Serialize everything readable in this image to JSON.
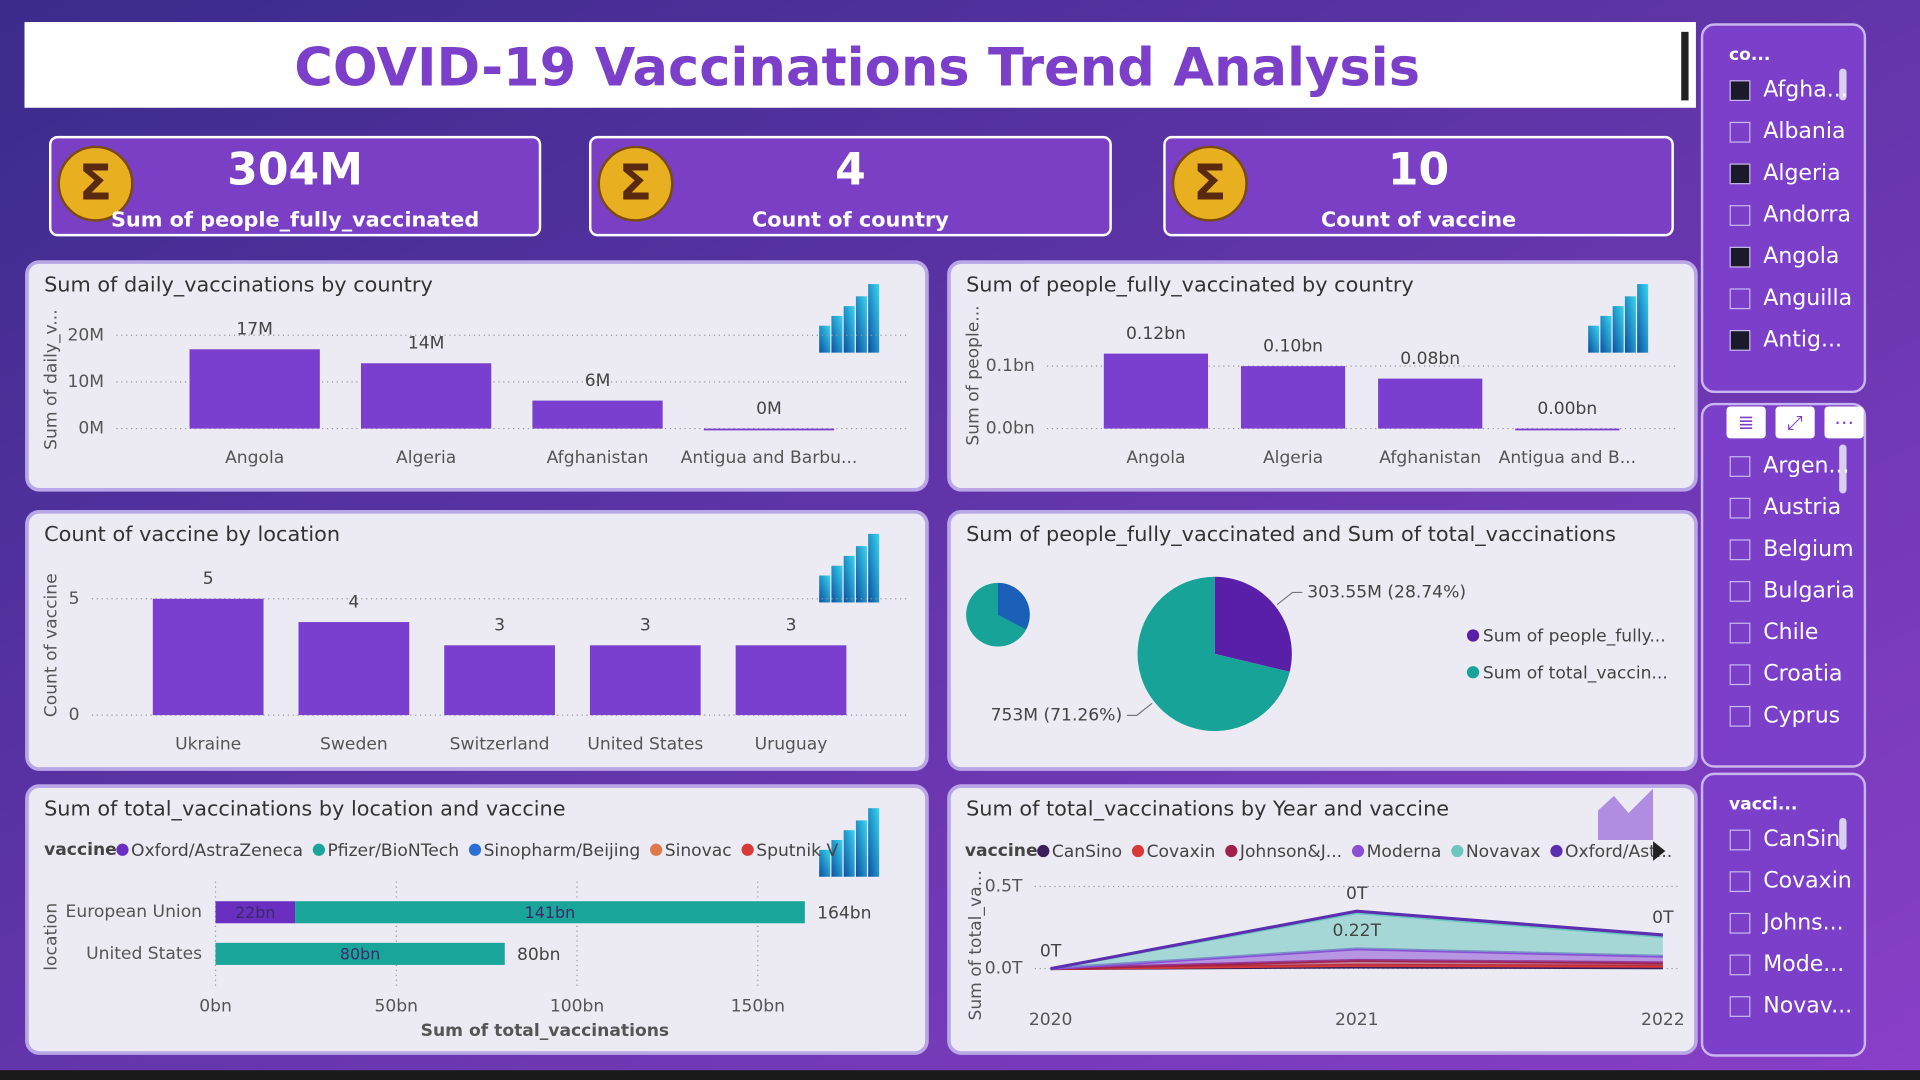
{
  "title": "COVID-19 Vaccinations Trend Analysis",
  "kpis": [
    {
      "value": "304M",
      "label": "Sum of people_fully_vaccinated"
    },
    {
      "value": "4",
      "label": "Count of country"
    },
    {
      "value": "10",
      "label": "Count of vaccine"
    }
  ],
  "slicers": [
    {
      "title": "co...",
      "items": [
        {
          "label": "Afgha...",
          "checked": true
        },
        {
          "label": "Albania",
          "checked": false
        },
        {
          "label": "Algeria",
          "checked": true
        },
        {
          "label": "Andorra",
          "checked": false
        },
        {
          "label": "Angola",
          "checked": true
        },
        {
          "label": "Anguilla",
          "checked": false
        },
        {
          "label": "Antig...",
          "checked": true
        }
      ]
    },
    {
      "items": [
        {
          "label": "Argen...",
          "checked": false
        },
        {
          "label": "Austria",
          "checked": false
        },
        {
          "label": "Belgium",
          "checked": false
        },
        {
          "label": "Bulgaria",
          "checked": false
        },
        {
          "label": "Chile",
          "checked": false
        },
        {
          "label": "Croatia",
          "checked": false
        },
        {
          "label": "Cyprus",
          "checked": false
        }
      ]
    },
    {
      "title": "vacci...",
      "items": [
        {
          "label": "CanSin",
          "checked": false
        },
        {
          "label": "Covaxin",
          "checked": false
        },
        {
          "label": "Johns...",
          "checked": false
        },
        {
          "label": "Mode...",
          "checked": false
        },
        {
          "label": "Novav...",
          "checked": false
        }
      ]
    }
  ],
  "chart_data": [
    {
      "type": "bar",
      "title": "Sum of daily_vaccinations by country",
      "y_label": "Sum of daily_v...",
      "categories": [
        "Angola",
        "Algeria",
        "Afghanistan",
        "Antigua and Barbu..."
      ],
      "values": [
        17,
        14,
        6,
        0
      ],
      "value_labels": [
        "17M",
        "14M",
        "6M",
        "0M"
      ],
      "color": "#7b3fd0",
      "ylim": [
        0,
        21
      ],
      "yticks": [
        {
          "value": 0,
          "label": "0M"
        },
        {
          "value": 10,
          "label": "10M"
        },
        {
          "value": 20,
          "label": "20M"
        }
      ],
      "grid": true
    },
    {
      "type": "bar",
      "title": "Sum of people_fully_vaccinated by country",
      "y_label": "Sum of people...",
      "categories": [
        "Angola",
        "Algeria",
        "Afghanistan",
        "Antigua and B..."
      ],
      "values": [
        0.12,
        0.1,
        0.08,
        0.0
      ],
      "value_labels": [
        "0.12bn",
        "0.10bn",
        "0.08bn",
        "0.00bn"
      ],
      "color": "#7b3fd0",
      "ylim": [
        0,
        0.17
      ],
      "yticks": [
        {
          "value": 0,
          "label": "0.0bn"
        },
        {
          "value": 0.1,
          "label": "0.1bn"
        }
      ],
      "grid": true
    },
    {
      "type": "bar",
      "title": "Count of vaccine by location",
      "y_label": "Count of vaccine",
      "categories": [
        "Ukraine",
        "Sweden",
        "Switzerland",
        "United States",
        "Uruguay"
      ],
      "values": [
        5,
        4,
        3,
        3,
        3
      ],
      "color": "#7b3fd0",
      "ylim": [
        0,
        6
      ],
      "yticks": [
        0,
        5
      ],
      "grid": true
    },
    {
      "type": "pie",
      "title": "Sum of people_fully_vaccinated and Sum of total_vaccinations",
      "categories": [
        "Sum of people_fully...",
        "Sum of total_vaccin..."
      ],
      "values": [
        303.55,
        753
      ],
      "value_labels": [
        "303.55M (28.74%)",
        "753M (71.26%)"
      ],
      "colors": [
        "#5a1fa8",
        "#17a398"
      ],
      "legend": "right"
    },
    {
      "type": "hbar_stacked",
      "title": "Sum of total_vaccinations by location and vaccine",
      "legend_title": "vaccine",
      "x_label": "Sum of total_vaccinations",
      "y_label": "location",
      "categories": [
        "European Union",
        "United States"
      ],
      "series": [
        {
          "name": "Oxford/AstraZeneca",
          "color": "#6a2fc0",
          "values": [
            22,
            null
          ],
          "value_labels": [
            "22bn",
            null
          ]
        },
        {
          "name": "Pfizer/BioNTech",
          "color": "#1aa59a",
          "values": [
            141,
            80
          ],
          "value_labels": [
            "141bn",
            "80bn"
          ]
        },
        {
          "name": "Sinopharm/Beijing",
          "color": "#2a6fd6",
          "values": [
            null,
            null
          ]
        },
        {
          "name": "Sinovac",
          "color": "#e0784a",
          "values": [
            null,
            null
          ]
        },
        {
          "name": "Sputnik V",
          "color": "#d83a3a",
          "values": [
            null,
            null
          ]
        }
      ],
      "total_labels": [
        "164bn",
        "80bn"
      ],
      "xlim": [
        0,
        190
      ],
      "xticks": [
        {
          "value": 0,
          "label": "0bn"
        },
        {
          "value": 50,
          "label": "50bn"
        },
        {
          "value": 100,
          "label": "100bn"
        },
        {
          "value": 150,
          "label": "150bn"
        }
      ],
      "grid": true
    },
    {
      "type": "area_stacked",
      "title": "Sum of total_vaccinations by Year and vaccine",
      "legend_title": "vaccine",
      "y_label": "Sum of total_va...",
      "x": [
        2020,
        2021,
        2022
      ],
      "series": [
        {
          "name": "CanSino",
          "color": "#3a1f5a",
          "values": [
            0,
            0.01,
            0.005
          ]
        },
        {
          "name": "Covaxin",
          "color": "#d83a3a",
          "values": [
            0,
            0.01,
            0.01
          ],
          "value_labels": [
            "0T",
            "0T",
            "0T"
          ]
        },
        {
          "name": "Johnson&J...",
          "color": "#a0224a",
          "values": [
            0,
            0.03,
            0.02
          ]
        },
        {
          "name": "Moderna",
          "color": "#8a4fd6",
          "values": [
            0,
            0.07,
            0.04
          ]
        },
        {
          "name": "Novavax",
          "color": "#6ec6c0",
          "values": [
            0,
            0.22,
            0.12
          ],
          "value_labels": [
            null,
            "0.22T",
            null
          ]
        },
        {
          "name": "Oxford/Ast...",
          "color": "#5b2fb0",
          "values": [
            0,
            0.01,
            0.01
          ]
        }
      ],
      "xlim": [
        2020,
        2022
      ],
      "xticks": [
        2020,
        2021,
        2022
      ],
      "ylim": [
        0,
        0.55
      ],
      "yticks": [
        {
          "value": 0,
          "label": "0.0T"
        },
        {
          "value": 0.5,
          "label": "0.5T"
        }
      ],
      "grid": true
    }
  ]
}
